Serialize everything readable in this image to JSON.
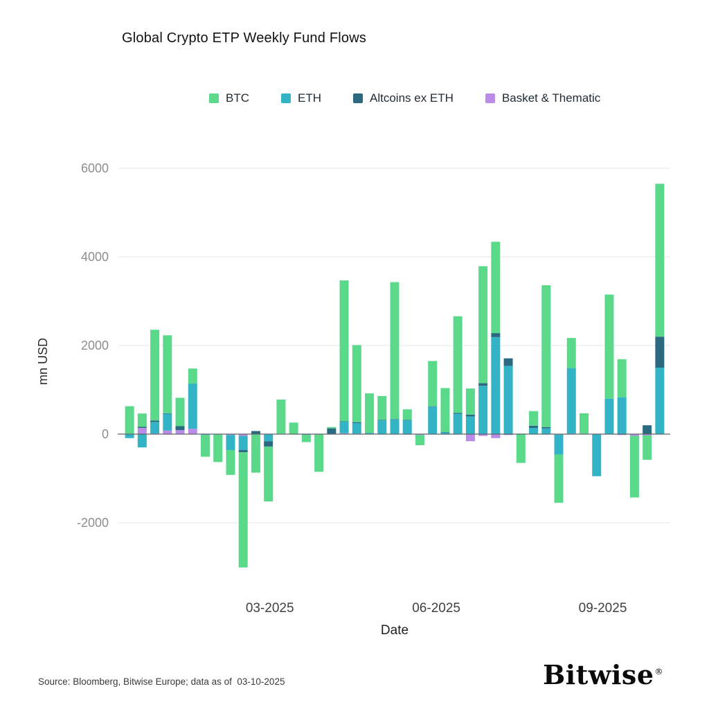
{
  "title": "Global Crypto ETP Weekly Fund Flows",
  "footer": {
    "source": "Source: Bloomberg, Bitwise Europe; data as of  03-10-2025",
    "brand": "Bitwise",
    "registered": "®"
  },
  "chart_data": {
    "type": "bar",
    "stacked": true,
    "title": "Global Crypto ETP Weekly Fund Flows",
    "xlabel": "Date",
    "ylabel": "mn USD",
    "ylim": [
      -3200,
      6200
    ],
    "yticks": [
      -2000,
      0,
      2000,
      4000,
      6000
    ],
    "xticks": [
      {
        "label": "03-2025",
        "date": "2025-03-01"
      },
      {
        "label": "06-2025",
        "date": "2025-06-01"
      },
      {
        "label": "09-2025",
        "date": "2025-09-01"
      }
    ],
    "grid": "horizontal",
    "legend_position": "top",
    "stack_order": [
      3,
      1,
      2,
      0
    ],
    "x": [
      "2024-12-13",
      "2024-12-20",
      "2024-12-27",
      "2025-01-03",
      "2025-01-10",
      "2025-01-17",
      "2025-01-24",
      "2025-01-31",
      "2025-02-07",
      "2025-02-14",
      "2025-02-21",
      "2025-02-28",
      "2025-03-07",
      "2025-03-14",
      "2025-03-21",
      "2025-03-28",
      "2025-04-04",
      "2025-04-11",
      "2025-04-18",
      "2025-04-25",
      "2025-05-02",
      "2025-05-09",
      "2025-05-16",
      "2025-05-23",
      "2025-05-30",
      "2025-06-06",
      "2025-06-13",
      "2025-06-20",
      "2025-06-27",
      "2025-07-04",
      "2025-07-11",
      "2025-07-18",
      "2025-07-25",
      "2025-08-01",
      "2025-08-08",
      "2025-08-15",
      "2025-08-22",
      "2025-08-29",
      "2025-09-05",
      "2025-09-12",
      "2025-09-19",
      "2025-09-26",
      "2025-10-03"
    ],
    "series": [
      {
        "name": "BTC",
        "color": "#5bd98b",
        "values": [
          620,
          300,
          2050,
          1760,
          640,
          340,
          -490,
          -620,
          -560,
          -2600,
          -860,
          -1240,
          770,
          260,
          -160,
          -850,
          30,
          3180,
          1740,
          890,
          540,
          3090,
          240,
          -230,
          1020,
          990,
          2180,
          590,
          2640,
          2060,
          0,
          -650,
          330,
          3200,
          -1090,
          680,
          460,
          0,
          2350,
          860,
          -1390,
          -550,
          3450
        ]
      },
      {
        "name": "ETH",
        "color": "#32b4c6",
        "values": [
          -90,
          -300,
          260,
          380,
          0,
          1020,
          -20,
          -10,
          -340,
          -320,
          0,
          -160,
          10,
          0,
          -20,
          0,
          0,
          260,
          240,
          30,
          310,
          330,
          310,
          0,
          620,
          40,
          460,
          400,
          1090,
          2190,
          1540,
          10,
          140,
          130,
          -450,
          1480,
          0,
          -950,
          800,
          830,
          0,
          0,
          1500
        ]
      },
      {
        "name": "Altcoins ex ETH",
        "color": "#2a697f",
        "values": [
          0,
          25,
          30,
          10,
          90,
          0,
          0,
          0,
          0,
          -50,
          70,
          -120,
          0,
          0,
          0,
          0,
          130,
          10,
          20,
          0,
          10,
          10,
          10,
          0,
          10,
          10,
          20,
          40,
          60,
          90,
          170,
          0,
          50,
          30,
          0,
          0,
          10,
          0,
          0,
          0,
          0,
          200,
          700
        ]
      },
      {
        "name": "Basket & Thematic",
        "color": "#ba8ce8",
        "values": [
          10,
          140,
          15,
          80,
          90,
          120,
          0,
          0,
          -20,
          -40,
          -10,
          0,
          0,
          0,
          0,
          0,
          0,
          20,
          10,
          0,
          0,
          0,
          -10,
          -20,
          0,
          -10,
          0,
          -160,
          -40,
          -90,
          -20,
          0,
          0,
          0,
          -10,
          10,
          0,
          0,
          0,
          -20,
          -40,
          -30,
          0
        ]
      }
    ]
  }
}
